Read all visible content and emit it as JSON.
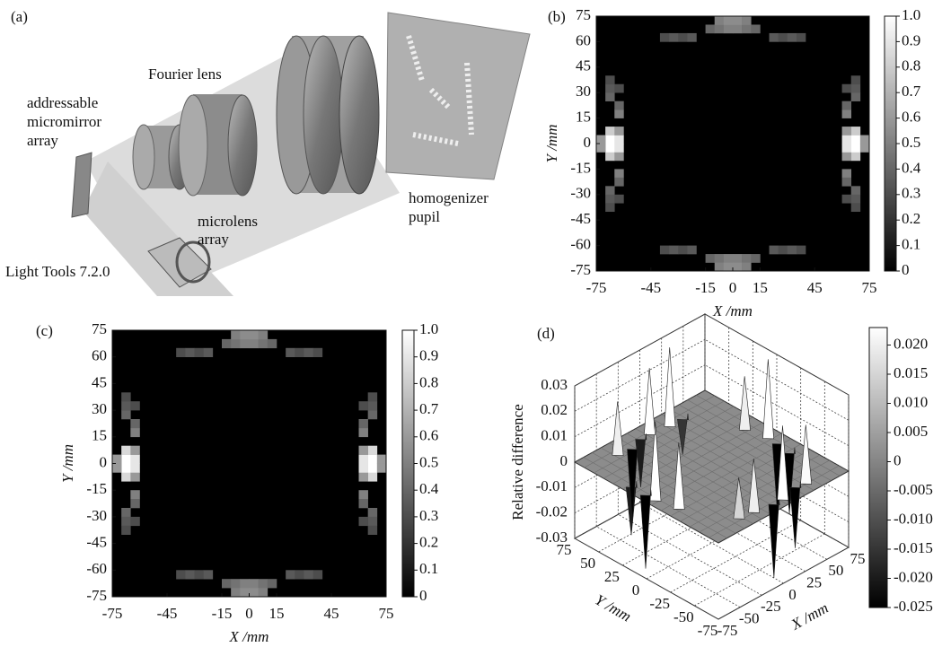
{
  "panel_a": {
    "label": "(a)",
    "fourier_lens": "Fourier lens",
    "micromirror": [
      "addressable",
      "micromirror",
      "array"
    ],
    "microlens": [
      "microlens",
      "array"
    ],
    "homogenizer": [
      "homogenizer",
      "pupil"
    ],
    "software": "Light Tools 7.2.0"
  },
  "chart_data": [
    {
      "type": "heatmap",
      "panel_label": "(b)",
      "xlabel": "X /mm",
      "ylabel": "Y /mm",
      "xlim": [
        -75,
        75
      ],
      "ylim": [
        -75,
        75
      ],
      "xticks": [
        -75,
        -45,
        -15,
        0,
        15,
        45,
        75
      ],
      "yticks": [
        -75,
        -60,
        -45,
        -30,
        -15,
        0,
        15,
        30,
        45,
        60,
        75
      ],
      "x": [
        -72.5,
        -67.5,
        -62.5,
        -57.5,
        -52.5,
        -47.5,
        -42.5,
        -37.5,
        -32.5,
        -27.5,
        -22.5,
        -17.5,
        -12.5,
        -7.5,
        -2.5,
        2.5,
        7.5,
        12.5,
        17.5,
        22.5,
        27.5,
        32.5,
        37.5,
        42.5,
        47.5,
        52.5,
        57.5,
        62.5,
        67.5,
        72.5
      ],
      "y": [
        -72.5,
        -67.5,
        -62.5,
        -57.5,
        -52.5,
        -47.5,
        -42.5,
        -37.5,
        -32.5,
        -27.5,
        -22.5,
        -17.5,
        -12.5,
        -7.5,
        -2.5,
        2.5,
        7.5,
        12.5,
        17.5,
        22.5,
        27.5,
        32.5,
        37.5,
        42.5,
        47.5,
        52.5,
        57.5,
        62.5,
        67.5,
        72.5
      ],
      "cells": [
        [
          1,
          13,
          0.8
        ],
        [
          1,
          14,
          1
        ],
        [
          1,
          15,
          1
        ],
        [
          1,
          16,
          0.8
        ],
        [
          0,
          14,
          0.6
        ],
        [
          0,
          15,
          0.6
        ],
        [
          2,
          13,
          0.6
        ],
        [
          2,
          14,
          0.9
        ],
        [
          2,
          15,
          0.9
        ],
        [
          2,
          16,
          0.6
        ],
        [
          2,
          18,
          0.5
        ],
        [
          2,
          19,
          0.4
        ],
        [
          1,
          20,
          0.4
        ],
        [
          1,
          21,
          0.35
        ],
        [
          2,
          21,
          0.3
        ],
        [
          1,
          22,
          0.3
        ],
        [
          2,
          11,
          0.5
        ],
        [
          2,
          10,
          0.4
        ],
        [
          1,
          9,
          0.4
        ],
        [
          1,
          8,
          0.35
        ],
        [
          2,
          8,
          0.3
        ],
        [
          1,
          7,
          0.3
        ],
        [
          28,
          13,
          0.8
        ],
        [
          28,
          14,
          1
        ],
        [
          28,
          15,
          1
        ],
        [
          28,
          16,
          0.8
        ],
        [
          29,
          14,
          0.6
        ],
        [
          29,
          15,
          0.6
        ],
        [
          27,
          13,
          0.6
        ],
        [
          27,
          14,
          0.9
        ],
        [
          27,
          15,
          0.9
        ],
        [
          27,
          16,
          0.6
        ],
        [
          27,
          18,
          0.5
        ],
        [
          27,
          19,
          0.4
        ],
        [
          28,
          20,
          0.4
        ],
        [
          28,
          21,
          0.35
        ],
        [
          27,
          21,
          0.3
        ],
        [
          28,
          22,
          0.3
        ],
        [
          27,
          11,
          0.5
        ],
        [
          27,
          10,
          0.4
        ],
        [
          28,
          9,
          0.4
        ],
        [
          28,
          8,
          0.35
        ],
        [
          27,
          8,
          0.3
        ],
        [
          28,
          7,
          0.3
        ],
        [
          12,
          28,
          0.4
        ],
        [
          13,
          28,
          0.45
        ],
        [
          14,
          28,
          0.5
        ],
        [
          15,
          28,
          0.5
        ],
        [
          16,
          28,
          0.45
        ],
        [
          17,
          28,
          0.4
        ],
        [
          13,
          29,
          0.5
        ],
        [
          14,
          29,
          0.55
        ],
        [
          15,
          29,
          0.55
        ],
        [
          16,
          29,
          0.5
        ],
        [
          7,
          27,
          0.3
        ],
        [
          8,
          27,
          0.35
        ],
        [
          9,
          27,
          0.3
        ],
        [
          10,
          27,
          0.35
        ],
        [
          19,
          27,
          0.35
        ],
        [
          20,
          27,
          0.3
        ],
        [
          21,
          27,
          0.35
        ],
        [
          22,
          27,
          0.3
        ],
        [
          12,
          1,
          0.4
        ],
        [
          13,
          1,
          0.45
        ],
        [
          14,
          1,
          0.5
        ],
        [
          15,
          1,
          0.5
        ],
        [
          16,
          1,
          0.45
        ],
        [
          17,
          1,
          0.4
        ],
        [
          13,
          0,
          0.5
        ],
        [
          14,
          0,
          0.55
        ],
        [
          15,
          0,
          0.55
        ],
        [
          16,
          0,
          0.5
        ],
        [
          7,
          2,
          0.3
        ],
        [
          8,
          2,
          0.35
        ],
        [
          9,
          2,
          0.3
        ],
        [
          10,
          2,
          0.35
        ],
        [
          19,
          2,
          0.35
        ],
        [
          20,
          2,
          0.3
        ],
        [
          21,
          2,
          0.35
        ],
        [
          22,
          2,
          0.3
        ]
      ],
      "clim": [
        0,
        1
      ],
      "cticks": [
        0,
        0.1,
        0.2,
        0.3,
        0.4,
        0.5,
        0.6,
        0.7,
        0.8,
        0.9,
        {
          "value": 1,
          "label": "1.0"
        }
      ],
      "colormap": "gray"
    },
    {
      "type": "heatmap",
      "panel_label": "(c)",
      "xlabel": "X /mm",
      "ylabel": "Y /mm",
      "xlim": [
        -75,
        75
      ],
      "ylim": [
        -75,
        75
      ],
      "xticks": [
        -75,
        -45,
        -15,
        0,
        15,
        45,
        75
      ],
      "yticks": [
        -75,
        -60,
        -45,
        -30,
        -15,
        0,
        15,
        30,
        45,
        60,
        75
      ],
      "x": [
        -72.5,
        -67.5,
        -62.5,
        -57.5,
        -52.5,
        -47.5,
        -42.5,
        -37.5,
        -32.5,
        -27.5,
        -22.5,
        -17.5,
        -12.5,
        -7.5,
        -2.5,
        2.5,
        7.5,
        12.5,
        17.5,
        22.5,
        27.5,
        32.5,
        37.5,
        42.5,
        47.5,
        52.5,
        57.5,
        62.5,
        67.5,
        72.5
      ],
      "y": [
        -72.5,
        -67.5,
        -62.5,
        -57.5,
        -52.5,
        -47.5,
        -42.5,
        -37.5,
        -32.5,
        -27.5,
        -22.5,
        -17.5,
        -12.5,
        -7.5,
        -2.5,
        2.5,
        7.5,
        12.5,
        17.5,
        22.5,
        27.5,
        32.5,
        37.5,
        42.5,
        47.5,
        52.5,
        57.5,
        62.5,
        67.5,
        72.5
      ],
      "cells": [
        [
          1,
          13,
          0.85
        ],
        [
          1,
          14,
          1
        ],
        [
          1,
          15,
          1
        ],
        [
          1,
          16,
          0.85
        ],
        [
          0,
          14,
          0.6
        ],
        [
          0,
          15,
          0.6
        ],
        [
          2,
          13,
          0.6
        ],
        [
          2,
          14,
          0.9
        ],
        [
          2,
          15,
          0.9
        ],
        [
          2,
          16,
          0.6
        ],
        [
          2,
          18,
          0.5
        ],
        [
          2,
          19,
          0.4
        ],
        [
          1,
          20,
          0.4
        ],
        [
          1,
          21,
          0.35
        ],
        [
          2,
          21,
          0.3
        ],
        [
          1,
          22,
          0.3
        ],
        [
          2,
          11,
          0.5
        ],
        [
          2,
          10,
          0.4
        ],
        [
          1,
          9,
          0.4
        ],
        [
          1,
          8,
          0.35
        ],
        [
          2,
          8,
          0.3
        ],
        [
          1,
          7,
          0.3
        ],
        [
          28,
          13,
          0.85
        ],
        [
          28,
          14,
          1
        ],
        [
          28,
          15,
          1
        ],
        [
          28,
          16,
          0.85
        ],
        [
          29,
          14,
          0.6
        ],
        [
          29,
          15,
          0.6
        ],
        [
          27,
          13,
          0.6
        ],
        [
          27,
          14,
          0.9
        ],
        [
          27,
          15,
          0.9
        ],
        [
          27,
          16,
          0.6
        ],
        [
          27,
          18,
          0.5
        ],
        [
          27,
          19,
          0.4
        ],
        [
          28,
          20,
          0.4
        ],
        [
          28,
          21,
          0.35
        ],
        [
          27,
          21,
          0.3
        ],
        [
          28,
          22,
          0.3
        ],
        [
          27,
          11,
          0.5
        ],
        [
          27,
          10,
          0.4
        ],
        [
          28,
          9,
          0.4
        ],
        [
          28,
          8,
          0.35
        ],
        [
          27,
          8,
          0.3
        ],
        [
          28,
          7,
          0.3
        ],
        [
          12,
          28,
          0.4
        ],
        [
          13,
          28,
          0.45
        ],
        [
          14,
          28,
          0.5
        ],
        [
          15,
          28,
          0.5
        ],
        [
          16,
          28,
          0.45
        ],
        [
          17,
          28,
          0.4
        ],
        [
          13,
          29,
          0.5
        ],
        [
          14,
          29,
          0.55
        ],
        [
          15,
          29,
          0.55
        ],
        [
          16,
          29,
          0.5
        ],
        [
          7,
          27,
          0.3
        ],
        [
          8,
          27,
          0.35
        ],
        [
          9,
          27,
          0.3
        ],
        [
          10,
          27,
          0.35
        ],
        [
          19,
          27,
          0.35
        ],
        [
          20,
          27,
          0.3
        ],
        [
          21,
          27,
          0.35
        ],
        [
          22,
          27,
          0.3
        ],
        [
          12,
          1,
          0.4
        ],
        [
          13,
          1,
          0.45
        ],
        [
          14,
          1,
          0.5
        ],
        [
          15,
          1,
          0.5
        ],
        [
          16,
          1,
          0.45
        ],
        [
          17,
          1,
          0.4
        ],
        [
          13,
          0,
          0.5
        ],
        [
          14,
          0,
          0.55
        ],
        [
          15,
          0,
          0.55
        ],
        [
          16,
          0,
          0.5
        ],
        [
          7,
          2,
          0.3
        ],
        [
          8,
          2,
          0.35
        ],
        [
          9,
          2,
          0.3
        ],
        [
          10,
          2,
          0.35
        ],
        [
          19,
          2,
          0.35
        ],
        [
          20,
          2,
          0.3
        ],
        [
          21,
          2,
          0.35
        ],
        [
          22,
          2,
          0.3
        ]
      ],
      "clim": [
        0,
        1
      ],
      "cticks": [
        0,
        0.1,
        0.2,
        0.3,
        0.4,
        0.5,
        0.6,
        0.7,
        0.8,
        0.9,
        {
          "value": 1,
          "label": "1.0"
        }
      ],
      "colormap": "gray"
    },
    {
      "type": "surface3d",
      "panel_label": "(d)",
      "xlabel": "X /mm",
      "ylabel": "Y /mm",
      "zlabel": "Relative difference",
      "xlim": [
        -75,
        75
      ],
      "ylim": [
        -75,
        75
      ],
      "zlim": [
        -0.03,
        0.03
      ],
      "xticks": [
        -75,
        -50,
        -25,
        0,
        25,
        50,
        75
      ],
      "yticks": [
        -75,
        -50,
        -25,
        0,
        25,
        50,
        75
      ],
      "zticks": [
        -0.03,
        -0.02,
        -0.01,
        0,
        0.01,
        0.02,
        0.03
      ],
      "x": [
        -65,
        -65,
        -60,
        -65,
        65,
        65,
        60,
        62,
        0,
        -10,
        20,
        -25,
        0,
        10,
        -20,
        30,
        35,
        -35,
        -40,
        40
      ],
      "y": [
        0,
        10,
        -20,
        25,
        0,
        -10,
        20,
        -25,
        65,
        65,
        62,
        60,
        -65,
        -65,
        -62,
        -60,
        62,
        -60,
        62,
        -62
      ],
      "z": [
        0.03,
        -0.03,
        0.025,
        -0.02,
        0.03,
        -0.03,
        0.02,
        -0.025,
        0.025,
        -0.02,
        0.03,
        -0.03,
        -0.03,
        0.028,
        0.02,
        -0.025,
        -0.015,
        0.015,
        0.02,
        0.022
      ],
      "clim": [
        -0.025,
        0.023
      ],
      "cticks": [
        -0.025,
        {
          "value": -0.02,
          "label": "-0.020"
        },
        -0.015,
        {
          "value": -0.01,
          "label": "-0.010"
        },
        -0.005,
        0,
        0.005,
        {
          "value": 0.01,
          "label": "0.010"
        },
        0.015,
        {
          "value": 0.02,
          "label": "0.020"
        }
      ],
      "colormap": "gray",
      "grid": true
    }
  ]
}
